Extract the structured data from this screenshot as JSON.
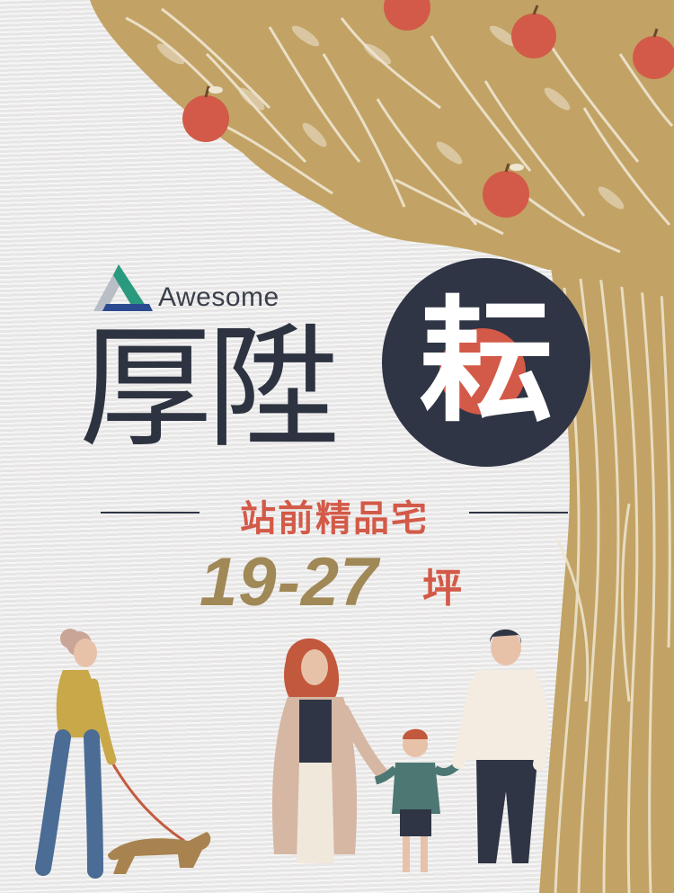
{
  "brand": {
    "name": "Awesome",
    "logo_icon": "triangle-logo-icon"
  },
  "title": {
    "main": "厚陞",
    "badge_char": "耘"
  },
  "subtitle": "站前精品宅",
  "area": {
    "range": "19-27",
    "unit": "坪"
  },
  "colors": {
    "navy": "#2f3545",
    "red": "#d35a48",
    "gold": "#a08857",
    "leaf": "#c2a365",
    "paper": "#ecebea"
  },
  "illustration": {
    "tree": "apple-tree-illustration",
    "people": [
      "woman-walking-dog",
      "family-holding-hands"
    ]
  }
}
